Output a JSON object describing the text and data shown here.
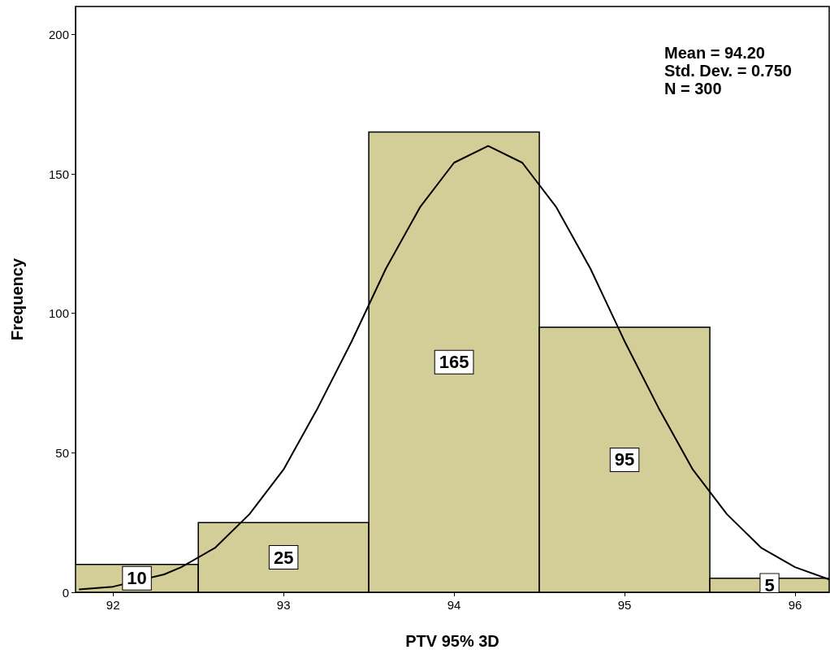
{
  "chart_data": {
    "type": "histogram",
    "xlabel": "PTV 95% 3D",
    "ylabel": "Frequency",
    "bins": [
      91.78,
      92.5,
      93.5,
      94.5,
      95.5,
      96.2
    ],
    "values": [
      10,
      25,
      165,
      95,
      5
    ],
    "color": "#d3ce97",
    "value_labels": [
      "10",
      "25",
      "165",
      "95",
      "5"
    ],
    "series": [
      {
        "type": "line",
        "color": "#000000",
        "marker": "none",
        "x": [
          91.8,
          92.0,
          92.3,
          92.4,
          92.6,
          92.8,
          93.0,
          93.2,
          93.4,
          93.6,
          93.8,
          94.0,
          94.2,
          94.4,
          94.6,
          94.8,
          95.0,
          95.2,
          95.4,
          95.6,
          95.8,
          96.0,
          96.2
        ],
        "values": [
          1,
          2,
          6.4,
          9,
          16,
          28,
          44,
          66,
          90,
          116,
          138,
          154,
          160,
          154,
          138,
          116,
          90,
          66,
          44,
          28,
          16,
          9,
          4.6
        ]
      }
    ],
    "xlim": [
      91.78,
      96.2
    ],
    "xticks": [
      92,
      93,
      94,
      95,
      96
    ],
    "ylim": [
      0,
      210
    ],
    "yticks": [
      0,
      50,
      100,
      150,
      200
    ],
    "grid": false,
    "annotations": [
      "Mean = 94.20",
      "Std. Dev. = 0.750",
      "N = 300"
    ]
  }
}
